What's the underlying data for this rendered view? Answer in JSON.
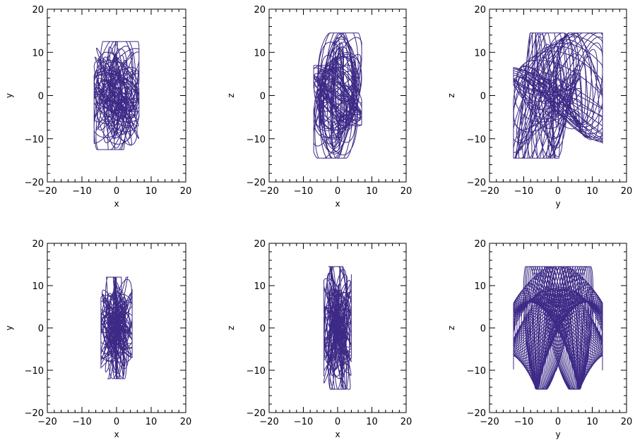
{
  "chart_data": [
    {
      "type": "line",
      "xlabel": "x",
      "ylabel": "y",
      "xlim": [
        -20,
        20
      ],
      "ylim": [
        -20,
        20
      ],
      "xticks": [
        "−20",
        "−10",
        "0",
        "10",
        "20"
      ],
      "yticks": [
        "−20",
        "−10",
        "0",
        "10",
        "20"
      ],
      "color": "#3d2a86",
      "series": [
        {
          "x_amplitude": 6.5,
          "y_amplitude": 12.5,
          "x_range": [
            -6.5,
            6.5
          ],
          "y_range": [
            -12.5,
            13
          ]
        }
      ]
    },
    {
      "type": "line",
      "xlabel": "x",
      "ylabel": "z",
      "xlim": [
        -20,
        20
      ],
      "ylim": [
        -20,
        20
      ],
      "xticks": [
        "−20",
        "−10",
        "0",
        "10",
        "20"
      ],
      "yticks": [
        "−20",
        "−10",
        "0",
        "10",
        "20"
      ],
      "color": "#3d2a86",
      "series": [
        {
          "x_amplitude": 7,
          "y_amplitude": 14.5,
          "x_range": [
            -7,
            7
          ],
          "y_range": [
            -14.5,
            14.5
          ]
        }
      ]
    },
    {
      "type": "line",
      "xlabel": "y",
      "ylabel": "z",
      "xlim": [
        -20,
        20
      ],
      "ylim": [
        -20,
        20
      ],
      "xticks": [
        "−20",
        "−10",
        "0",
        "10",
        "20"
      ],
      "yticks": [
        "−20",
        "−10",
        "0",
        "10",
        "20"
      ],
      "color": "#3d2a86",
      "series": [
        {
          "x_amplitude": 13,
          "y_amplitude": 14.5,
          "x_range": [
            -13,
            13
          ],
          "y_range": [
            -15,
            14.5
          ]
        }
      ]
    },
    {
      "type": "line",
      "xlabel": "x",
      "ylabel": "y",
      "xlim": [
        -20,
        20
      ],
      "ylim": [
        -20,
        20
      ],
      "xticks": [
        "−20",
        "−10",
        "0",
        "10",
        "20"
      ],
      "yticks": [
        "−20",
        "−10",
        "0",
        "10",
        "20"
      ],
      "color": "#3d2a86",
      "series": [
        {
          "x_amplitude": 4.5,
          "y_amplitude": 12,
          "x_range": [
            -4.5,
            4.5
          ],
          "y_range": [
            -12,
            12
          ]
        }
      ]
    },
    {
      "type": "line",
      "xlabel": "x",
      "ylabel": "z",
      "xlim": [
        -20,
        20
      ],
      "ylim": [
        -20,
        20
      ],
      "xticks": [
        "−20",
        "−10",
        "0",
        "10",
        "20"
      ],
      "yticks": [
        "−20",
        "−10",
        "0",
        "10",
        "20"
      ],
      "color": "#3d2a86",
      "series": [
        {
          "x_amplitude": 4,
          "y_amplitude": 14.5,
          "x_range": [
            -4,
            4
          ],
          "y_range": [
            -14.5,
            14.5
          ]
        }
      ]
    },
    {
      "type": "line",
      "xlabel": "y",
      "ylabel": "z",
      "xlim": [
        -20,
        20
      ],
      "ylim": [
        -20,
        20
      ],
      "xticks": [
        "−20",
        "−10",
        "0",
        "10",
        "20"
      ],
      "yticks": [
        "−20",
        "−10",
        "0",
        "10",
        "20"
      ],
      "color": "#3d2a86",
      "series": [
        {
          "x_amplitude": 13,
          "y_amplitude": 14.5,
          "x_range": [
            -13,
            13
          ],
          "y_range": [
            -15,
            15
          ]
        }
      ]
    }
  ]
}
